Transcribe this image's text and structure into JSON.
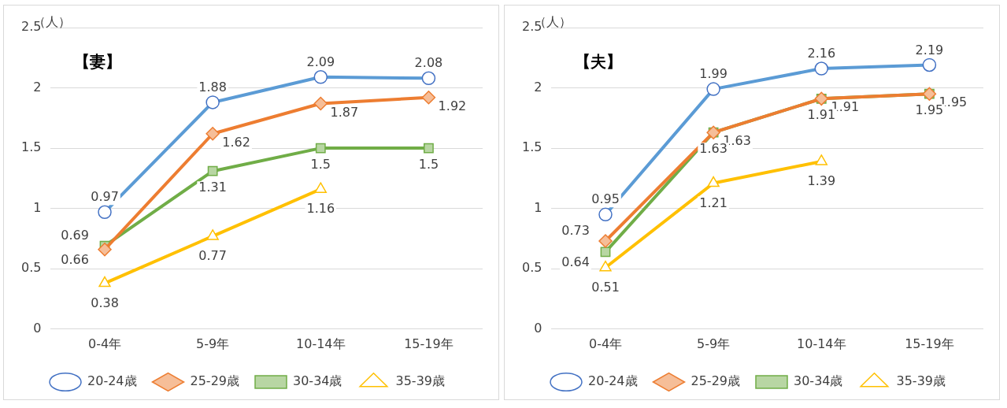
{
  "chart_data": [
    {
      "type": "line",
      "title": "【妻】",
      "ylabel": "（人）",
      "categories": [
        "0-4年",
        "5-9年",
        "10-14年",
        "15-19年"
      ],
      "ylim": [
        0,
        2.5
      ],
      "yticks": [
        0,
        0.5,
        1,
        1.5,
        2,
        2.5
      ],
      "grid": "y",
      "legend": "bottom",
      "data_labels": true,
      "series": [
        {
          "name": "20-24歳",
          "color": "#5b9bd5",
          "marker": "circle",
          "values": [
            0.97,
            1.88,
            2.09,
            2.08
          ]
        },
        {
          "name": "25-29歳",
          "color": "#ed7d31",
          "marker": "diamond",
          "values": [
            0.66,
            1.62,
            1.87,
            1.92
          ]
        },
        {
          "name": "30-34歳",
          "color": "#70ad47",
          "marker": "square",
          "values": [
            0.69,
            1.31,
            1.5,
            1.5
          ]
        },
        {
          "name": "35-39歳",
          "color": "#ffc000",
          "marker": "triangle",
          "values": [
            0.38,
            0.77,
            1.16,
            null
          ]
        }
      ]
    },
    {
      "type": "line",
      "title": "【夫】",
      "ylabel": "（人）",
      "categories": [
        "0-4年",
        "5-9年",
        "10-14年",
        "15-19年"
      ],
      "ylim": [
        0,
        2.5
      ],
      "yticks": [
        0,
        0.5,
        1,
        1.5,
        2,
        2.5
      ],
      "grid": "y",
      "legend": "bottom",
      "data_labels": true,
      "series": [
        {
          "name": "20-24歳",
          "color": "#5b9bd5",
          "marker": "circle",
          "values": [
            0.95,
            1.99,
            2.16,
            2.19
          ]
        },
        {
          "name": "25-29歳",
          "color": "#ed7d31",
          "marker": "diamond",
          "values": [
            0.73,
            1.63,
            1.91,
            1.95
          ]
        },
        {
          "name": "30-34歳",
          "color": "#70ad47",
          "marker": "square",
          "values": [
            0.64,
            1.63,
            1.91,
            1.95
          ]
        },
        {
          "name": "35-39歳",
          "color": "#ffc000",
          "marker": "triangle",
          "values": [
            0.51,
            1.21,
            1.39,
            null
          ]
        }
      ]
    }
  ]
}
